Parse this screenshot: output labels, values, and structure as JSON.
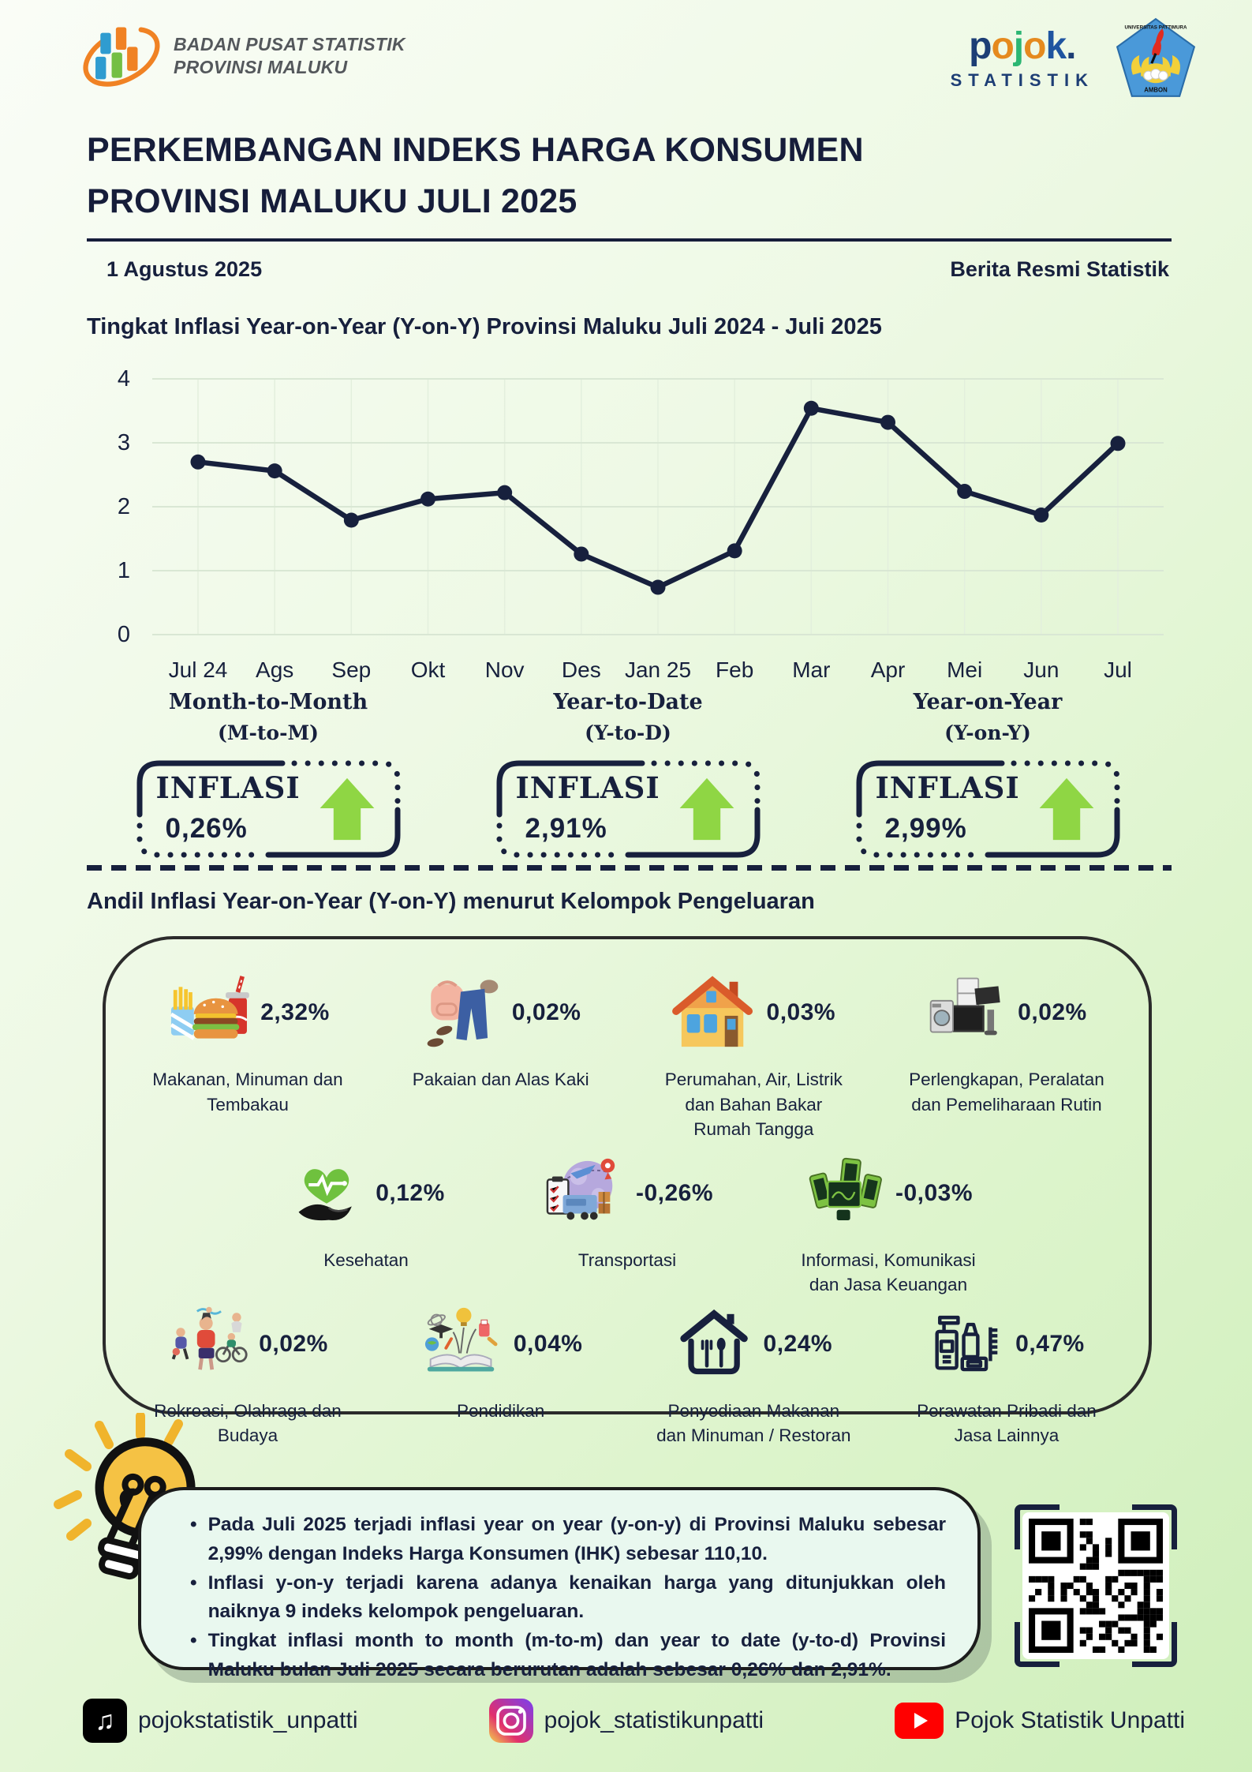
{
  "header": {
    "bps_line1": "BADAN PUSAT STATISTIK",
    "bps_line2": "PROVINSI MALUKU",
    "pojok": {
      "l0": "p",
      "l1": "o",
      "l2": "j",
      "l3": "o",
      "l4": "k",
      "l5": ".",
      "sub": "STATISTIK"
    },
    "university": {
      "top": "UNIVERSITAS PATTIMURA",
      "bottom": "AMBON"
    }
  },
  "title": {
    "line1": "PERKEMBANGAN INDEKS HARGA KONSUMEN",
    "line2": "PROVINSI MALUKU JULI 2025"
  },
  "date": "1 Agustus 2025",
  "release_label": "Berita Resmi Statistik",
  "chart_heading": "Tingkat Inflasi Year-on-Year (Y-on-Y) Provinsi Maluku Juli 2024 - Juli 2025",
  "chart_data": {
    "type": "line",
    "title": "Tingkat Inflasi Year-on-Year (Y-on-Y) Provinsi Maluku Juli 2024 - Juli 2025",
    "x": [
      "Jul 24",
      "Ags",
      "Sep",
      "Okt",
      "Nov",
      "Des",
      "Jan 25",
      "Feb",
      "Mar",
      "Apr",
      "Mei",
      "Jun",
      "Jul"
    ],
    "values": [
      2.7,
      2.56,
      1.79,
      2.12,
      2.22,
      1.26,
      0.74,
      1.31,
      3.54,
      3.32,
      2.24,
      1.87,
      2.99
    ],
    "xlabel": "",
    "ylabel": "",
    "ylim": [
      0,
      4
    ],
    "yticks": [
      0,
      1,
      2,
      3,
      4
    ],
    "grid": true,
    "line_color": "#17203d",
    "marker": "circle"
  },
  "kpis": {
    "items": [
      {
        "period": "Month-to-Month",
        "abbr": "(M-to-M)",
        "word": "INFLASI",
        "value": "0,26%",
        "direction": "up"
      },
      {
        "period": "Year-to-Date",
        "abbr": "(Y-to-D)",
        "word": "INFLASI",
        "value": "2,91%",
        "direction": "up"
      },
      {
        "period": "Year-on-Year",
        "abbr": "(Y-on-Y)",
        "word": "INFLASI",
        "value": "2,99%",
        "direction": "up"
      }
    ]
  },
  "contrib": {
    "heading": "Andil Inflasi Year-on-Year (Y-on-Y) menurut Kelompok Pengeluaran",
    "items": [
      {
        "value": "2,32%",
        "label": "Makanan, Minuman dan Tembakau",
        "icon": "food-beverage-tobacco-icon"
      },
      {
        "value": "0,02%",
        "label": "Pakaian dan Alas Kaki",
        "icon": "clothing-footwear-icon"
      },
      {
        "value": "0,03%",
        "label": "Perumahan, Air, Listrik dan Bahan Bakar Rumah Tangga",
        "icon": "housing-utilities-icon"
      },
      {
        "value": "0,02%",
        "label": "Perlengkapan, Peralatan dan Pemeliharaan Rutin",
        "icon": "household-equipment-icon"
      },
      {
        "value": "0,12%",
        "label": "Kesehatan",
        "icon": "health-icon"
      },
      {
        "value": "-0,26%",
        "label": "Transportasi",
        "icon": "transportation-icon"
      },
      {
        "value": "-0,03%",
        "label": "Informasi, Komunikasi dan Jasa Keuangan",
        "icon": "information-communication-icon"
      },
      {
        "value": "0,02%",
        "label": "Rekreasi, Olahraga dan Budaya",
        "icon": "recreation-sport-culture-icon"
      },
      {
        "value": "0,04%",
        "label": "Pendidikan",
        "icon": "education-icon"
      },
      {
        "value": "0,24%",
        "label": "Penyediaan Makanan dan Minuman / Restoran",
        "icon": "restaurant-icon"
      },
      {
        "value": "0,47%",
        "label": "Perawatan Pribadi dan Jasa Lainnya",
        "icon": "personal-care-icon"
      }
    ]
  },
  "notes": {
    "bullets": [
      "Pada Juli 2025 terjadi inflasi year on year (y-on-y) di Provinsi Maluku sebesar 2,99% dengan Indeks Harga Konsumen (IHK) sebesar 110,10.",
      "Inflasi y-on-y terjadi karena adanya kenaikan harga yang ditunjukkan oleh naiknya 9 indeks kelompok pengeluaran.",
      "Tingkat inflasi month to month (m-to-m) dan year to date (y-to-d) Provinsi Maluku bulan Juli 2025 secara berurutan adalah sebesar 0,26% dan 2,91%."
    ]
  },
  "footer": {
    "tiktok": "pojokstatistik_unpatti",
    "instagram": "pojok_statistikunpatti",
    "youtube": "Pojok Statistik Unpatti"
  },
  "colors": {
    "navy_text": "#17203d",
    "accent_green_arrow": "#8fd644",
    "background_green": "#cfefbb",
    "notes_bg": "#e9f8ef",
    "bps_blue": "#2f9cd0",
    "bps_orange": "#f08224",
    "bps_green": "#74bf44",
    "pojok_navy": "#1d3e75",
    "pojok_orange": "#e58a1e",
    "pojok_green": "#2cb673",
    "youtube_red": "#ff0000"
  }
}
